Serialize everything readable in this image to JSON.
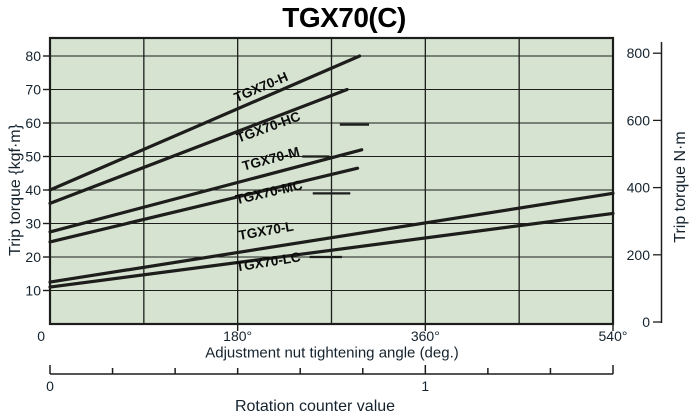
{
  "chart_data": {
    "type": "line",
    "title": "TGX70(C)",
    "xlabel": "Adjustment nut tightening angle (deg.)",
    "x_secondary_label": "Rotation counter value",
    "ylabel_left": "Trip torque {kgf·m}",
    "ylabel_right": "Trip torque  N·m",
    "bg_color": "#d5e3d0",
    "line_color": "#1d1d1b",
    "text_color": "#15232e",
    "xlim_deg": [
      0,
      540
    ],
    "x_grid_step_deg": 90,
    "x_tick_labels": [
      {
        "deg": 0,
        "label": "0"
      },
      {
        "deg": 180,
        "label": "180°"
      },
      {
        "deg": 360,
        "label": "360°"
      },
      {
        "deg": 540,
        "label": "540°"
      }
    ],
    "ylim_kgfm": [
      0,
      85
    ],
    "y_ticks_kgfm": [
      10,
      20,
      30,
      40,
      50,
      60,
      70,
      80
    ],
    "right_axis_nm": {
      "unit": "N·m",
      "ticks": [
        0,
        200,
        400,
        600,
        800
      ]
    },
    "rotation_counter": {
      "start": 0,
      "end": 1.5,
      "divisions": 9,
      "labels": [
        {
          "value": 0,
          "text": "0"
        },
        {
          "value": 1,
          "text": "1"
        }
      ]
    },
    "series": [
      {
        "name": "TGX70-H",
        "points_deg_kgfm": [
          [
            0,
            40.0
          ],
          [
            297,
            80.0
          ]
        ],
        "label_pos": [
          204,
          69.5
        ],
        "label_angle": -23
      },
      {
        "name": "TGX70-HC",
        "points_deg_kgfm": [
          [
            0,
            36.0
          ],
          [
            285,
            70.0
          ]
        ],
        "label_pos": [
          211,
          57.5
        ],
        "label_angle": -20,
        "leader": [
          [
            278,
            59.5
          ],
          [
            306,
            59.5
          ]
        ]
      },
      {
        "name": "TGX70-M",
        "points_deg_kgfm": [
          [
            0,
            27.5
          ],
          [
            299,
            52.0
          ]
        ],
        "label_pos": [
          213,
          48.0
        ],
        "label_angle": -15,
        "leader": [
          [
            242,
            50.0
          ],
          [
            268,
            50.0
          ]
        ]
      },
      {
        "name": "TGX70-MC",
        "points_deg_kgfm": [
          [
            0,
            24.5
          ],
          [
            295,
            46.5
          ]
        ],
        "label_pos": [
          211,
          38.0
        ],
        "label_angle": -13,
        "leader": [
          [
            252,
            39.0
          ],
          [
            288,
            39.0
          ]
        ]
      },
      {
        "name": "TGX70-L",
        "points_deg_kgfm": [
          [
            0,
            12.5
          ],
          [
            540,
            39.0
          ]
        ],
        "label_pos": [
          208,
          26.5
        ],
        "label_angle": -10
      },
      {
        "name": "TGX70-LC",
        "points_deg_kgfm": [
          [
            0,
            11.0
          ],
          [
            540,
            33.0
          ]
        ],
        "label_pos": [
          210,
          17.2
        ],
        "label_angle": -9,
        "leader": [
          [
            249,
            20.0
          ],
          [
            280,
            20.0
          ]
        ]
      }
    ]
  }
}
